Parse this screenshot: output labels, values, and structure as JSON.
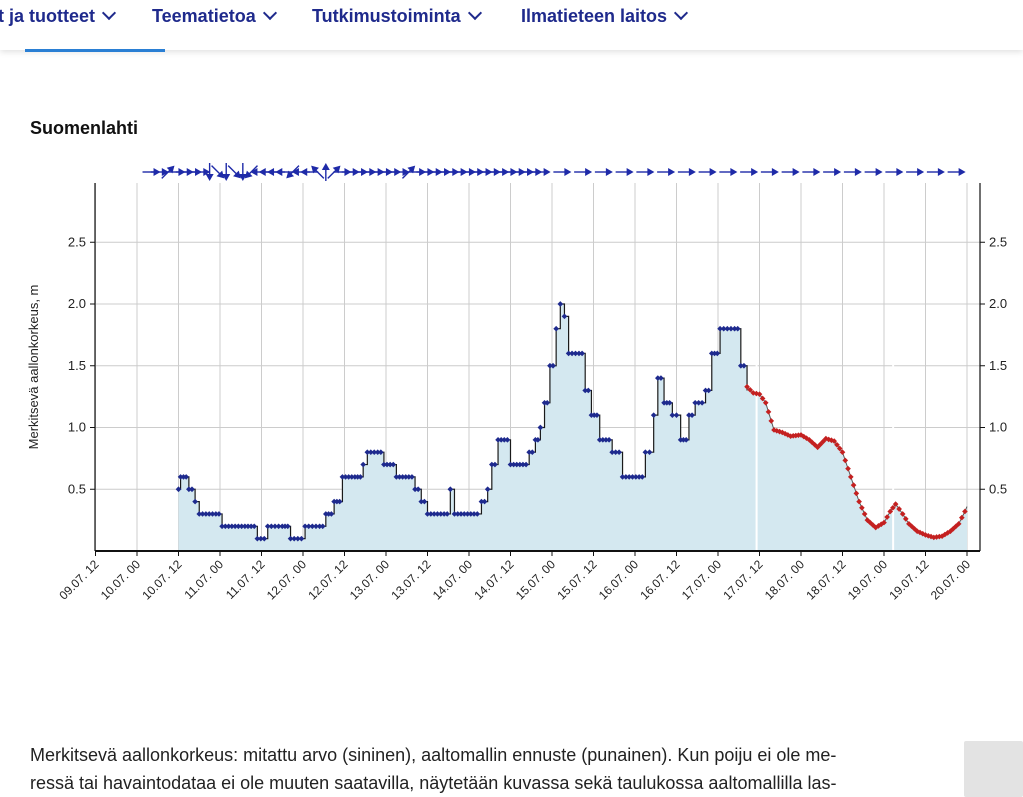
{
  "nav": {
    "items": [
      {
        "label": "t ja tuotteet"
      },
      {
        "label": "Teematietoa"
      },
      {
        "label": "Tutkimustoiminta"
      },
      {
        "label": "Ilmatieteen laitos"
      }
    ]
  },
  "chart_title": "Suomenlahti",
  "caption": {
    "line1": "Merkitsevä aallonkorkeus: mitattu arvo (sininen), aaltomallin ennuste (punainen). Kun poiju ei ole me-",
    "line2": "ressä tai havaintodataa ei ole muuten saatavilla, näytetään kuvassa sekä taulukossa aaltomallilla las-"
  },
  "colors": {
    "nav_text": "#1f2a8c",
    "nav_underline": "#2a7fd4",
    "area_fill": "#d4e8f0",
    "observed_line": "#1a1a1a",
    "observed_marker": "#1e2a8e",
    "forecast_marker": "#c42020",
    "arrow": "#1e2aa8",
    "grid": "#cccccc"
  },
  "chart_data": {
    "type": "area",
    "title": "Suomenlahti",
    "xlabel": "",
    "ylabel": "Merkitsevä aallonkorkeus, m",
    "ylim": [
      0,
      3.0
    ],
    "yticks": [
      "0.5",
      "1.0",
      "1.5",
      "2.0",
      "2.5"
    ],
    "xticks": [
      "09.07. 12",
      "10.07. 00",
      "10.07. 12",
      "11.07. 00",
      "11.07. 12",
      "12.07. 00",
      "12.07. 12",
      "13.07. 00",
      "13.07. 12",
      "14.07. 00",
      "14.07. 12",
      "15.07. 00",
      "15.07. 12",
      "16.07. 00",
      "16.07. 12",
      "17.07. 00",
      "17.07. 12",
      "18.07. 00",
      "18.07. 12",
      "19.07. 00",
      "19.07. 12",
      "20.07. 00"
    ],
    "grid": true,
    "series": [
      {
        "name": "mitattu arvo",
        "color": "#1e2a8e",
        "points": [
          [
            1,
            0.5
          ],
          [
            1.05,
            0.6
          ],
          [
            1.12,
            0.6
          ],
          [
            1.25,
            0.5
          ],
          [
            1.4,
            0.4
          ],
          [
            1.5,
            0.3
          ],
          [
            1.9,
            0.3
          ],
          [
            2.05,
            0.2
          ],
          [
            2.6,
            0.2
          ],
          [
            2.9,
            0.1
          ],
          [
            3.15,
            0.2
          ],
          [
            3.5,
            0.2
          ],
          [
            3.7,
            0.1
          ],
          [
            4.05,
            0.2
          ],
          [
            4.4,
            0.2
          ],
          [
            4.55,
            0.3
          ],
          [
            4.75,
            0.4
          ],
          [
            4.95,
            0.6
          ],
          [
            5.25,
            0.6
          ],
          [
            5.45,
            0.7
          ],
          [
            5.55,
            0.8
          ],
          [
            5.8,
            0.8
          ],
          [
            5.95,
            0.7
          ],
          [
            6.25,
            0.6
          ],
          [
            6.55,
            0.6
          ],
          [
            6.7,
            0.5
          ],
          [
            6.85,
            0.4
          ],
          [
            7.0,
            0.3
          ],
          [
            7.4,
            0.3
          ],
          [
            7.55,
            0.5
          ],
          [
            7.65,
            0.3
          ],
          [
            8.2,
            0.3
          ],
          [
            8.3,
            0.4
          ],
          [
            8.45,
            0.5
          ],
          [
            8.55,
            0.7
          ],
          [
            8.7,
            0.9
          ],
          [
            8.85,
            0.9
          ],
          [
            9.0,
            0.7
          ],
          [
            9.3,
            0.7
          ],
          [
            9.45,
            0.8
          ],
          [
            9.6,
            0.9
          ],
          [
            9.72,
            1.0
          ],
          [
            9.82,
            1.2
          ],
          [
            9.95,
            1.5
          ],
          [
            10.1,
            1.8
          ],
          [
            10.2,
            2.0
          ],
          [
            10.3,
            1.9
          ],
          [
            10.4,
            1.6
          ],
          [
            10.65,
            1.6
          ],
          [
            10.8,
            1.3
          ],
          [
            10.95,
            1.1
          ],
          [
            11.15,
            0.9
          ],
          [
            11.45,
            0.8
          ],
          [
            11.7,
            0.6
          ],
          [
            12.1,
            0.6
          ],
          [
            12.25,
            0.8
          ],
          [
            12.45,
            1.1
          ],
          [
            12.55,
            1.4
          ],
          [
            12.7,
            1.2
          ],
          [
            12.9,
            1.1
          ],
          [
            13.1,
            0.9
          ],
          [
            13.3,
            1.1
          ],
          [
            13.45,
            1.2
          ],
          [
            13.7,
            1.3
          ],
          [
            13.85,
            1.6
          ],
          [
            14.05,
            1.8
          ],
          [
            14.4,
            1.8
          ],
          [
            14.55,
            1.5
          ],
          [
            14.7,
            1.3
          ]
        ]
      },
      {
        "name": "aaltomallin ennuste",
        "color": "#c42020",
        "points": [
          [
            14.7,
            1.33
          ],
          [
            14.85,
            1.28
          ],
          [
            15.0,
            1.27
          ],
          [
            15.15,
            1.2
          ],
          [
            15.35,
            0.98
          ],
          [
            15.55,
            0.96
          ],
          [
            15.75,
            0.93
          ],
          [
            16.0,
            0.94
          ],
          [
            16.2,
            0.9
          ],
          [
            16.4,
            0.84
          ],
          [
            16.6,
            0.91
          ],
          [
            16.8,
            0.89
          ],
          [
            17.0,
            0.8
          ],
          [
            17.2,
            0.6
          ],
          [
            17.4,
            0.4
          ],
          [
            17.6,
            0.25
          ],
          [
            17.8,
            0.19
          ],
          [
            18.0,
            0.23
          ],
          [
            18.15,
            0.32
          ],
          [
            18.28,
            0.38
          ],
          [
            18.45,
            0.3
          ],
          [
            18.6,
            0.22
          ],
          [
            18.8,
            0.16
          ],
          [
            19.0,
            0.13
          ],
          [
            19.2,
            0.11
          ],
          [
            19.4,
            0.12
          ],
          [
            19.6,
            0.16
          ],
          [
            19.8,
            0.22
          ],
          [
            19.95,
            0.32
          ],
          [
            20.0,
            0.36
          ]
        ]
      }
    ],
    "wind_arrows": [
      {
        "x": 0.35,
        "dir": "e"
      },
      {
        "x": 0.55,
        "dir": "e"
      },
      {
        "x": 0.75,
        "dir": "ne"
      },
      {
        "x": 0.95,
        "dir": "e"
      },
      {
        "x": 1.15,
        "dir": "e"
      },
      {
        "x": 1.35,
        "dir": "e"
      },
      {
        "x": 1.55,
        "dir": "e"
      },
      {
        "x": 1.75,
        "dir": "s"
      },
      {
        "x": 1.95,
        "dir": "se"
      },
      {
        "x": 2.15,
        "dir": "s"
      },
      {
        "x": 2.35,
        "dir": "se"
      },
      {
        "x": 2.55,
        "dir": "s"
      },
      {
        "x": 2.75,
        "dir": "sw"
      },
      {
        "x": 2.95,
        "dir": "w"
      },
      {
        "x": 3.15,
        "dir": "w"
      },
      {
        "x": 3.35,
        "dir": "w"
      },
      {
        "x": 3.55,
        "dir": "w"
      },
      {
        "x": 3.75,
        "dir": "sw"
      },
      {
        "x": 3.95,
        "dir": "w"
      },
      {
        "x": 4.15,
        "dir": "w"
      },
      {
        "x": 4.35,
        "dir": "nw"
      },
      {
        "x": 4.55,
        "dir": "n"
      },
      {
        "x": 4.75,
        "dir": "ne"
      },
      {
        "x": 4.95,
        "dir": "e"
      },
      {
        "x": 5.15,
        "dir": "e"
      },
      {
        "x": 5.35,
        "dir": "e"
      },
      {
        "x": 5.55,
        "dir": "e"
      },
      {
        "x": 5.75,
        "dir": "e"
      },
      {
        "x": 5.95,
        "dir": "e"
      },
      {
        "x": 6.15,
        "dir": "e"
      },
      {
        "x": 6.35,
        "dir": "e"
      },
      {
        "x": 6.55,
        "dir": "ne"
      },
      {
        "x": 6.75,
        "dir": "e"
      },
      {
        "x": 6.95,
        "dir": "e"
      },
      {
        "x": 7.15,
        "dir": "e"
      },
      {
        "x": 7.35,
        "dir": "e"
      },
      {
        "x": 7.55,
        "dir": "e"
      },
      {
        "x": 7.75,
        "dir": "e"
      },
      {
        "x": 7.95,
        "dir": "e"
      },
      {
        "x": 8.15,
        "dir": "e"
      },
      {
        "x": 8.35,
        "dir": "e"
      },
      {
        "x": 8.55,
        "dir": "e"
      },
      {
        "x": 8.75,
        "dir": "e"
      },
      {
        "x": 8.95,
        "dir": "e"
      },
      {
        "x": 9.15,
        "dir": "e"
      },
      {
        "x": 9.35,
        "dir": "e"
      },
      {
        "x": 9.55,
        "dir": "e"
      },
      {
        "x": 9.75,
        "dir": "e"
      },
      {
        "x": 10.25,
        "dir": "e"
      },
      {
        "x": 10.75,
        "dir": "e"
      },
      {
        "x": 11.25,
        "dir": "e"
      },
      {
        "x": 11.75,
        "dir": "e"
      },
      {
        "x": 12.25,
        "dir": "e"
      },
      {
        "x": 12.75,
        "dir": "e"
      },
      {
        "x": 13.25,
        "dir": "e"
      },
      {
        "x": 13.75,
        "dir": "e"
      },
      {
        "x": 14.25,
        "dir": "e"
      },
      {
        "x": 14.75,
        "dir": "e"
      },
      {
        "x": 15.25,
        "dir": "e"
      },
      {
        "x": 15.75,
        "dir": "e"
      },
      {
        "x": 16.25,
        "dir": "e"
      },
      {
        "x": 16.75,
        "dir": "e"
      },
      {
        "x": 17.25,
        "dir": "e"
      },
      {
        "x": 17.75,
        "dir": "e"
      },
      {
        "x": 18.25,
        "dir": "e"
      },
      {
        "x": 18.75,
        "dir": "e"
      },
      {
        "x": 19.25,
        "dir": "e"
      },
      {
        "x": 19.75,
        "dir": "e"
      }
    ]
  }
}
